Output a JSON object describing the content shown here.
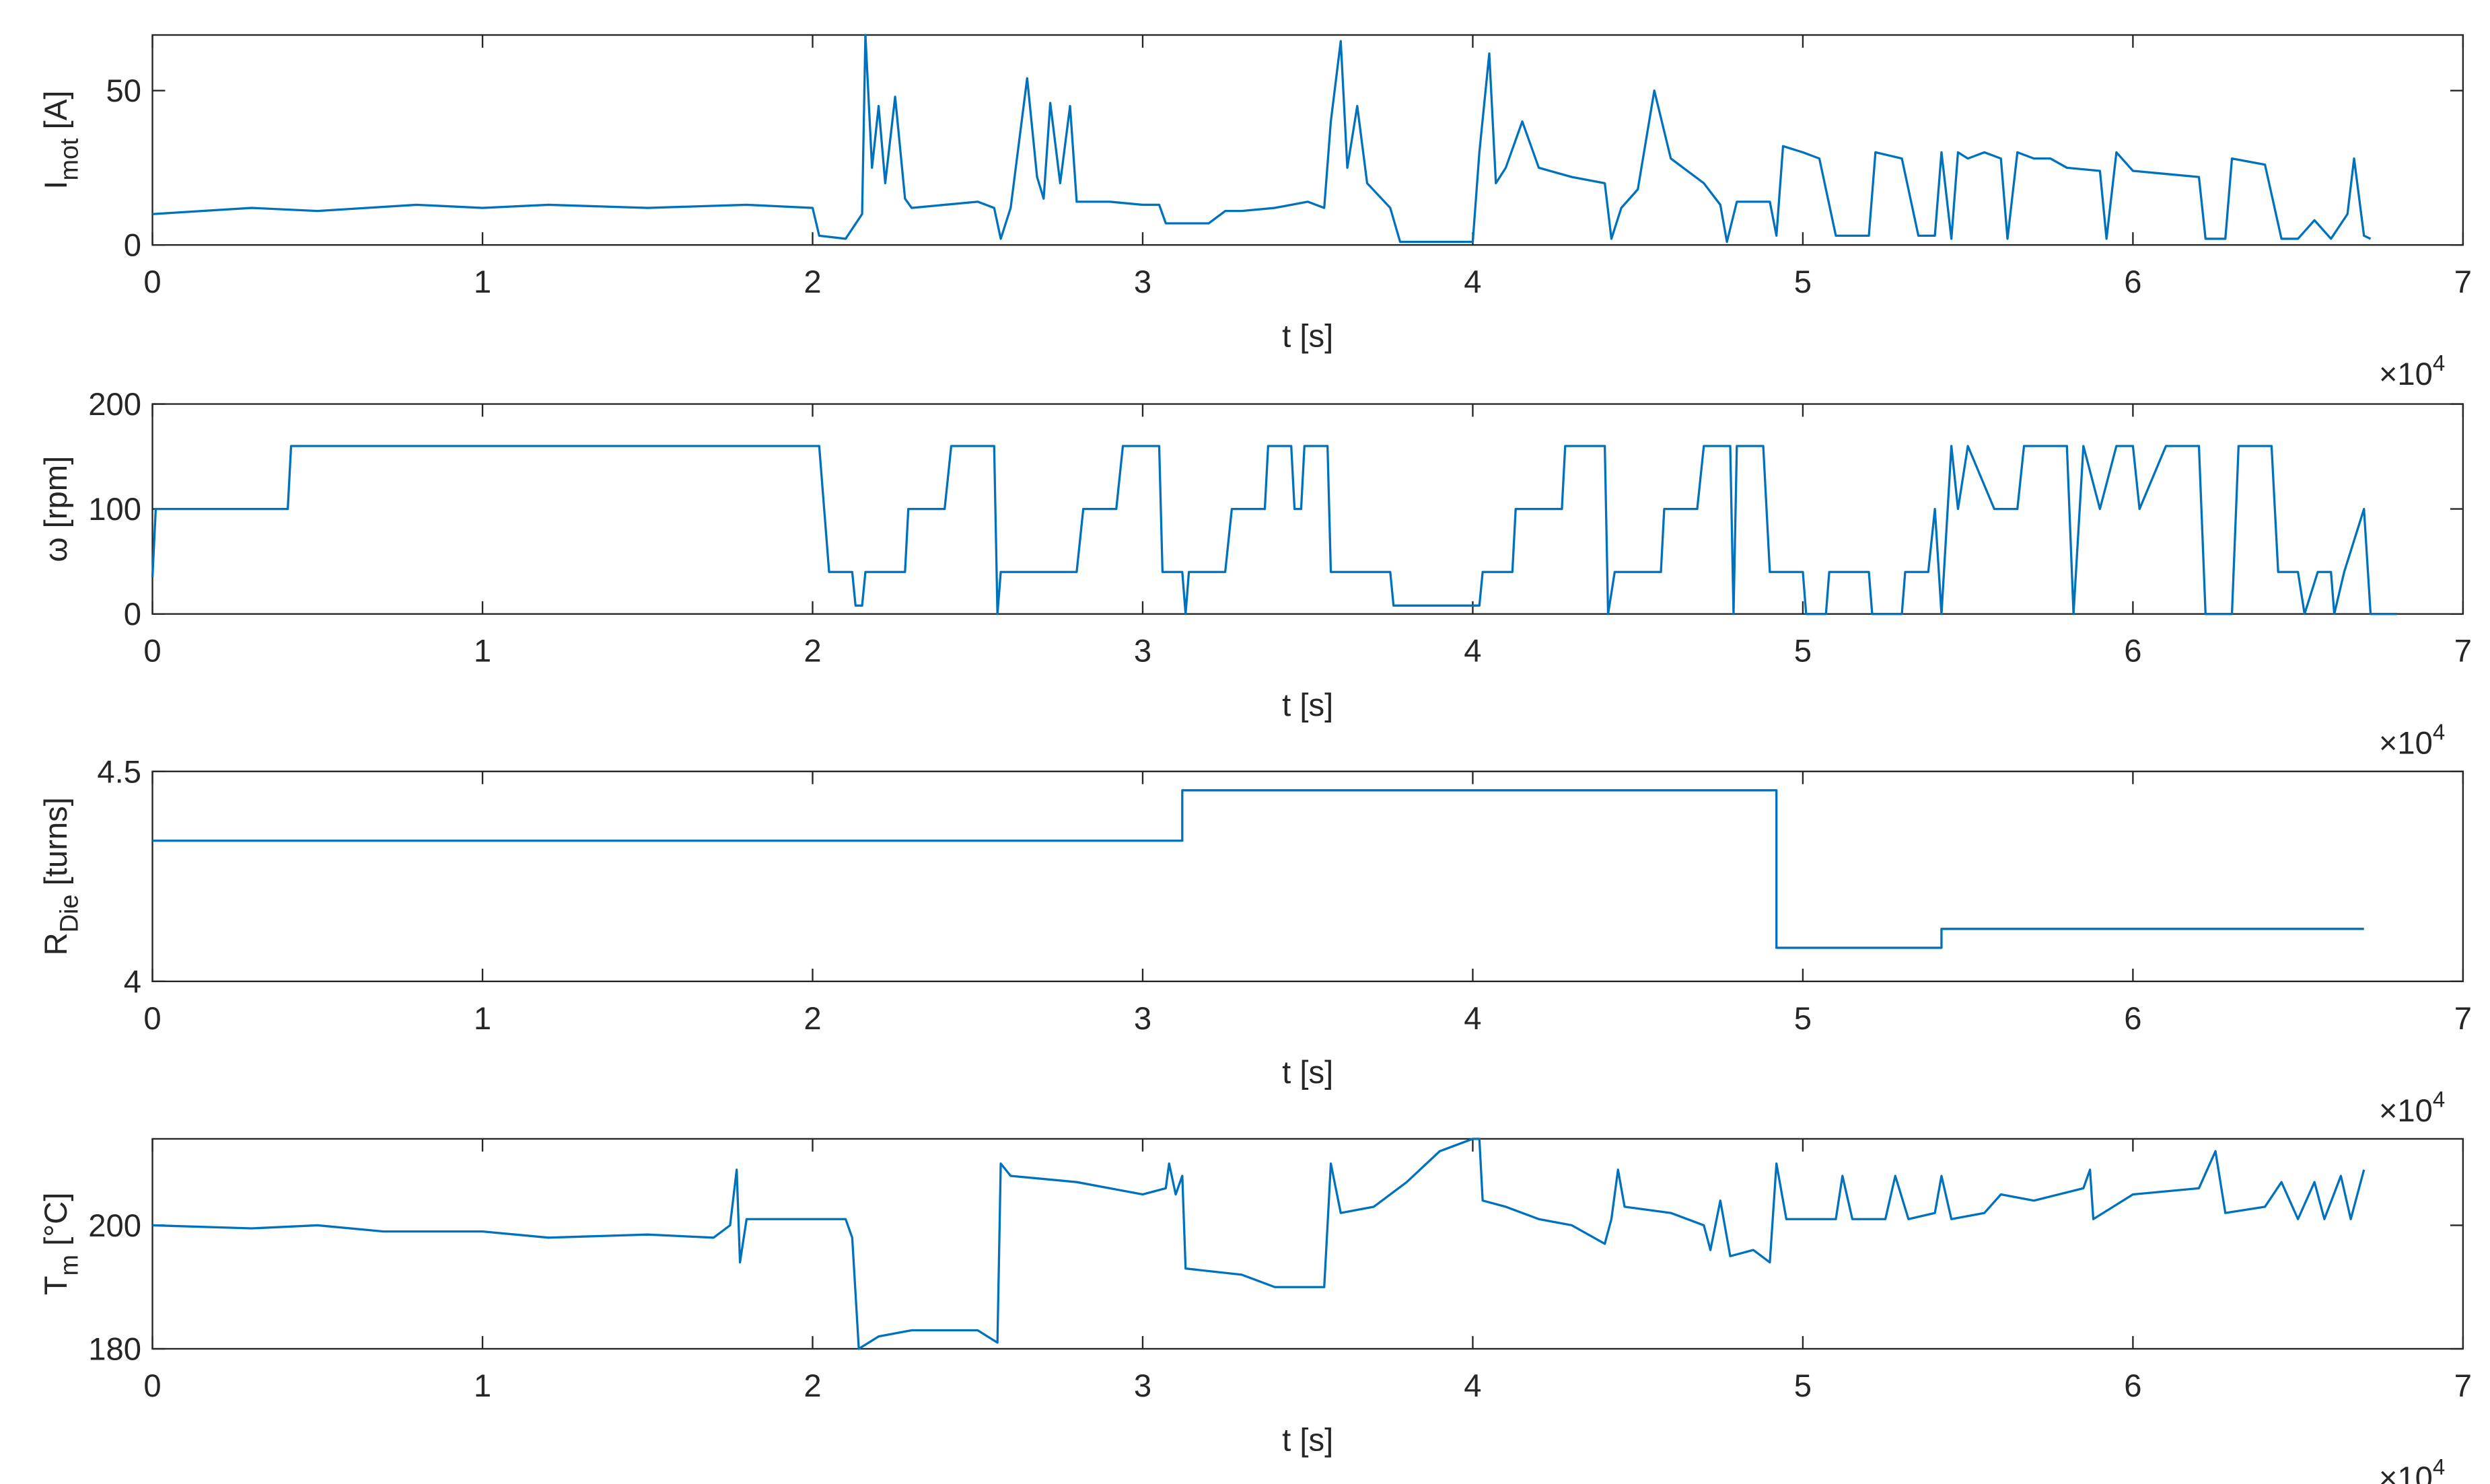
{
  "chart_data": [
    {
      "type": "line",
      "xlabel": "t [s]",
      "x_multiplier": {
        "base": "×10",
        "exponent": "4"
      },
      "ylabel": {
        "main": "I",
        "sub": "mot",
        "unit": " [A]"
      },
      "xlim": [
        0,
        7
      ],
      "xticks": [
        0,
        1,
        2,
        3,
        4,
        5,
        6,
        7
      ],
      "ylim": [
        0,
        68
      ],
      "yticks": [
        0,
        50
      ],
      "color": "#0072bd",
      "x": [
        0,
        0.3,
        0.5,
        0.8,
        1.0,
        1.2,
        1.5,
        1.8,
        2.0,
        2.02,
        2.1,
        2.15,
        2.16,
        2.18,
        2.2,
        2.22,
        2.25,
        2.28,
        2.3,
        2.4,
        2.5,
        2.55,
        2.57,
        2.6,
        2.65,
        2.68,
        2.7,
        2.72,
        2.75,
        2.78,
        2.8,
        2.9,
        3.0,
        3.05,
        3.07,
        3.2,
        3.25,
        3.3,
        3.4,
        3.5,
        3.55,
        3.57,
        3.6,
        3.62,
        3.65,
        3.68,
        3.75,
        3.78,
        4.0,
        4.02,
        4.05,
        4.07,
        4.1,
        4.15,
        4.2,
        4.3,
        4.4,
        4.42,
        4.45,
        4.5,
        4.55,
        4.6,
        4.7,
        4.75,
        4.77,
        4.8,
        4.9,
        4.92,
        4.94,
        5.0,
        5.05,
        5.1,
        5.2,
        5.22,
        5.3,
        5.35,
        5.4,
        5.42,
        5.45,
        5.47,
        5.5,
        5.55,
        5.6,
        5.62,
        5.65,
        5.7,
        5.75,
        5.8,
        5.9,
        5.92,
        5.95,
        6.0,
        6.1,
        6.2,
        6.22,
        6.28,
        6.3,
        6.4,
        6.45,
        6.5,
        6.55,
        6.6,
        6.65,
        6.67,
        6.7,
        6.72
      ],
      "values": [
        10,
        12,
        11,
        13,
        12,
        13,
        12,
        13,
        12,
        3,
        2,
        10,
        68,
        25,
        45,
        20,
        48,
        15,
        12,
        13,
        14,
        12,
        2,
        12,
        54,
        22,
        15,
        46,
        20,
        45,
        14,
        14,
        13,
        13,
        7,
        7,
        11,
        11,
        12,
        14,
        12,
        40,
        66,
        25,
        45,
        20,
        12,
        1,
        1,
        30,
        62,
        20,
        25,
        40,
        25,
        22,
        20,
        2,
        12,
        18,
        50,
        28,
        20,
        13,
        1,
        14,
        14,
        3,
        32,
        30,
        28,
        3,
        3,
        30,
        28,
        3,
        3,
        30,
        2,
        30,
        28,
        30,
        28,
        2,
        30,
        28,
        28,
        25,
        24,
        2,
        30,
        24,
        23,
        22,
        2,
        2,
        28,
        26,
        2,
        2,
        8,
        2,
        10,
        28,
        3,
        2
      ]
    },
    {
      "type": "line",
      "xlabel": "t [s]",
      "x_multiplier": {
        "base": "×10",
        "exponent": "4"
      },
      "ylabel": {
        "main": "ω",
        "sub": "",
        "unit": " [rpm]"
      },
      "xlim": [
        0,
        7
      ],
      "xticks": [
        0,
        1,
        2,
        3,
        4,
        5,
        6,
        7
      ],
      "ylim": [
        0,
        200
      ],
      "yticks": [
        0,
        100,
        200
      ],
      "color": "#0072bd",
      "x": [
        0,
        0.01,
        0.41,
        0.42,
        2.02,
        2.05,
        2.12,
        2.13,
        2.15,
        2.16,
        2.28,
        2.29,
        2.4,
        2.42,
        2.55,
        2.56,
        2.57,
        2.8,
        2.82,
        2.92,
        2.94,
        3.05,
        3.06,
        3.12,
        3.13,
        3.14,
        3.25,
        3.27,
        3.37,
        3.38,
        3.45,
        3.46,
        3.48,
        3.49,
        3.56,
        3.57,
        3.75,
        3.76,
        4.02,
        4.03,
        4.12,
        4.13,
        4.27,
        4.28,
        4.4,
        4.41,
        4.43,
        4.57,
        4.58,
        4.68,
        4.7,
        4.78,
        4.79,
        4.8,
        4.88,
        4.9,
        5.0,
        5.01,
        5.07,
        5.08,
        5.2,
        5.21,
        5.3,
        5.31,
        5.38,
        5.4,
        5.42,
        5.45,
        5.47,
        5.5,
        5.58,
        5.65,
        5.67,
        5.8,
        5.82,
        5.85,
        5.9,
        5.95,
        6.0,
        6.02,
        6.1,
        6.2,
        6.22,
        6.3,
        6.32,
        6.42,
        6.44,
        6.5,
        6.52,
        6.56,
        6.6,
        6.61,
        6.64,
        6.7,
        6.72,
        6.8
      ],
      "values": [
        35,
        100,
        100,
        160,
        160,
        40,
        40,
        8,
        8,
        40,
        40,
        100,
        100,
        160,
        160,
        0,
        40,
        40,
        100,
        100,
        160,
        160,
        40,
        40,
        0,
        40,
        40,
        100,
        100,
        160,
        160,
        100,
        100,
        160,
        160,
        40,
        40,
        8,
        8,
        40,
        40,
        100,
        100,
        160,
        160,
        0,
        40,
        40,
        100,
        100,
        160,
        160,
        0,
        160,
        160,
        40,
        40,
        0,
        0,
        40,
        40,
        0,
        0,
        40,
        40,
        100,
        0,
        160,
        100,
        160,
        100,
        100,
        160,
        160,
        0,
        160,
        100,
        160,
        160,
        100,
        160,
        160,
        0,
        0,
        160,
        160,
        40,
        40,
        0,
        40,
        40,
        0,
        40,
        100,
        0,
        0
      ]
    },
    {
      "type": "line",
      "xlabel": "t [s]",
      "x_multiplier": {
        "base": "×10",
        "exponent": "4"
      },
      "ylabel": {
        "main": "R",
        "sub": "Die",
        "unit": " [turns]"
      },
      "xlim": [
        0,
        7
      ],
      "xticks": [
        0,
        1,
        2,
        3,
        4,
        5,
        6,
        7
      ],
      "ylim": [
        4,
        4.5
      ],
      "yticks": [
        4,
        4.5
      ],
      "color": "#0072bd",
      "x": [
        0,
        3.12,
        3.12,
        4.92,
        4.92,
        5.42,
        5.42,
        6.7
      ],
      "values": [
        4.335,
        4.335,
        4.455,
        4.455,
        4.08,
        4.08,
        4.125,
        4.125
      ]
    },
    {
      "type": "line",
      "xlabel": "t [s]",
      "x_multiplier": {
        "base": "×10",
        "exponent": "4"
      },
      "ylabel": {
        "main": "T",
        "sub": "m",
        "unit": " [°C]"
      },
      "xlim": [
        0,
        7
      ],
      "xticks": [
        0,
        1,
        2,
        3,
        4,
        5,
        6,
        7
      ],
      "ylim": [
        180,
        214
      ],
      "yticks": [
        180,
        200
      ],
      "color": "#0072bd",
      "x": [
        0,
        0.3,
        0.5,
        0.7,
        1.0,
        1.2,
        1.5,
        1.7,
        1.75,
        1.77,
        1.78,
        1.8,
        2.0,
        2.1,
        2.12,
        2.14,
        2.2,
        2.3,
        2.5,
        2.56,
        2.57,
        2.6,
        2.8,
        3.0,
        3.07,
        3.08,
        3.1,
        3.12,
        3.13,
        3.3,
        3.4,
        3.5,
        3.55,
        3.57,
        3.6,
        3.7,
        3.8,
        3.9,
        4.0,
        4.02,
        4.03,
        4.1,
        4.2,
        4.3,
        4.4,
        4.42,
        4.44,
        4.46,
        4.6,
        4.7,
        4.72,
        4.75,
        4.78,
        4.85,
        4.9,
        4.92,
        4.95,
        5.1,
        5.12,
        5.15,
        5.25,
        5.28,
        5.32,
        5.4,
        5.42,
        5.45,
        5.55,
        5.6,
        5.7,
        5.85,
        5.87,
        5.88,
        6.0,
        6.2,
        6.25,
        6.28,
        6.4,
        6.45,
        6.5,
        6.55,
        6.58,
        6.63,
        6.66,
        6.7
      ],
      "values": [
        200,
        199.5,
        200,
        199,
        199,
        198,
        198.5,
        198,
        200,
        209,
        194,
        201,
        201,
        201,
        198,
        180,
        182,
        183,
        183,
        181,
        210,
        208,
        207,
        205,
        206,
        210,
        205,
        208,
        193,
        192,
        190,
        190,
        190,
        210,
        202,
        203,
        207,
        212,
        214,
        214,
        204,
        203,
        201,
        200,
        197,
        201,
        209,
        203,
        202,
        200,
        196,
        204,
        195,
        196,
        194,
        210,
        201,
        201,
        208,
        201,
        201,
        208,
        201,
        202,
        208,
        201,
        202,
        205,
        204,
        206,
        209,
        201,
        205,
        206,
        212,
        202,
        203,
        207,
        201,
        207,
        201,
        208,
        201,
        209
      ]
    }
  ]
}
